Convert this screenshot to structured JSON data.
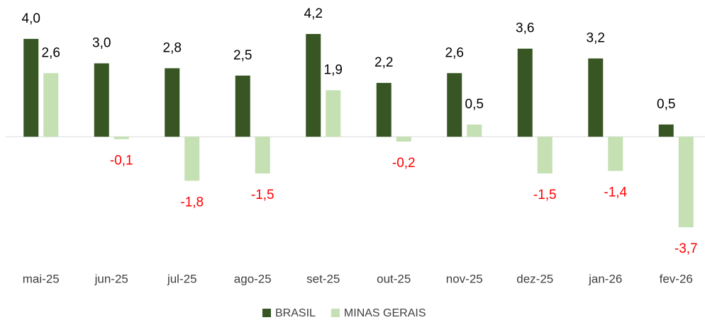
{
  "chart_data": {
    "type": "bar",
    "categories": [
      "mai-25",
      "jun-25",
      "jul-25",
      "ago-25",
      "set-25",
      "out-25",
      "nov-25",
      "dez-25",
      "jan-26",
      "fev-26"
    ],
    "series": [
      {
        "name": "BRASIL",
        "color": "#375623",
        "values": [
          4.0,
          3.0,
          2.8,
          2.5,
          4.2,
          2.2,
          2.6,
          3.6,
          3.2,
          0.5
        ],
        "value_labels": [
          "4,0",
          "3,0",
          "2,8",
          "2,5",
          "4,2",
          "2,2",
          "2,6",
          "3,6",
          "3,2",
          "0,5"
        ]
      },
      {
        "name": "MINAS GERAIS",
        "color": "#c5e0b3",
        "values": [
          2.6,
          -0.1,
          -1.8,
          -1.5,
          1.9,
          -0.2,
          0.5,
          -1.5,
          -1.4,
          -3.7
        ],
        "value_labels": [
          "2,6",
          "-0,1",
          "-1,8",
          "-1,5",
          "1,9",
          "-0,2",
          "0,5",
          "-1,5",
          "-1,4",
          "-3,7"
        ]
      }
    ],
    "negative_label_color": "#ff0000",
    "legend": "bottom"
  }
}
